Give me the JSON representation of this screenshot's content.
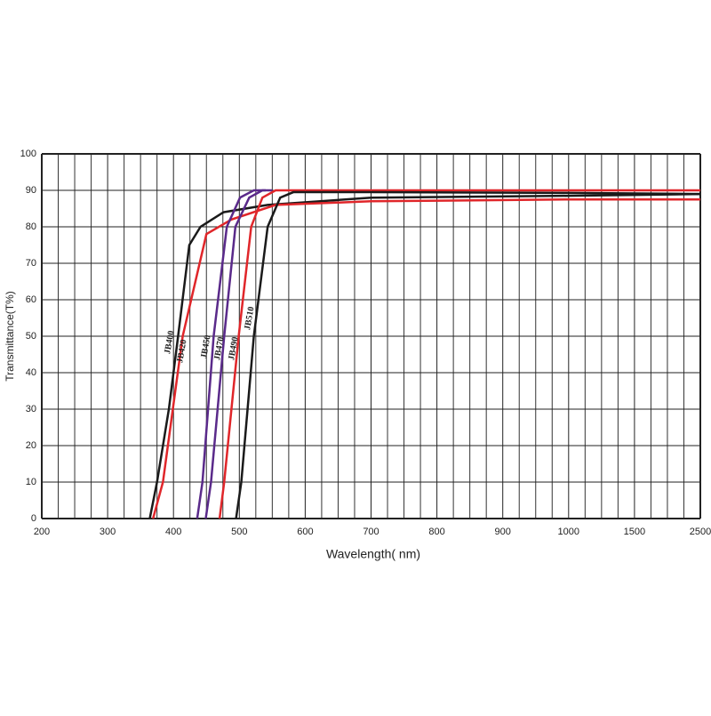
{
  "chart_data": {
    "type": "line",
    "xlabel": "Wavelength( nm)",
    "ylabel": "Transmittance(T%)",
    "xlim": [
      200,
      2500
    ],
    "xticks": [
      200,
      300,
      400,
      500,
      600,
      700,
      800,
      900,
      1000,
      1500,
      2500
    ],
    "ylim": [
      0,
      100
    ],
    "yticks": [
      0,
      10,
      20,
      30,
      40,
      50,
      60,
      70,
      80,
      90,
      100
    ],
    "grid": true,
    "series": [
      {
        "name": "JB400",
        "color": "#1a1a1a",
        "x": [
          364,
          375,
          393,
          407,
          424,
          441,
          476,
          543,
          700,
          1000,
          2500
        ],
        "values": [
          0,
          10,
          30,
          50,
          75,
          80,
          84,
          86,
          88,
          88.5,
          89
        ]
      },
      {
        "name": "JB420",
        "color": "#e0262a",
        "x": [
          369,
          384,
          414,
          450,
          488,
          555,
          700,
          1000,
          2500
        ],
        "values": [
          0,
          10,
          50,
          78,
          82,
          86,
          87,
          87.5,
          87.5
        ]
      },
      {
        "name": "JB450",
        "color": "#5a2a8a",
        "x": [
          436,
          444,
          461,
          481,
          501,
          522,
          540
        ],
        "values": [
          0,
          10,
          50,
          80,
          88,
          90,
          90
        ]
      },
      {
        "name": "JB470",
        "color": "#5a2a8a",
        "x": [
          449,
          457,
          477,
          494,
          515,
          535,
          550
        ],
        "values": [
          0,
          10,
          50,
          80,
          88,
          90,
          90
        ]
      },
      {
        "name": "JB490",
        "color": "#e0262a",
        "x": [
          470,
          477,
          499,
          518,
          535,
          555,
          700,
          1000,
          2500
        ],
        "values": [
          0,
          10,
          50,
          80,
          88,
          90,
          90,
          90,
          90
        ]
      },
      {
        "name": "JB510",
        "color": "#1a1a1a",
        "x": [
          495,
          503,
          522,
          543,
          562,
          582,
          700,
          1000,
          2500
        ],
        "values": [
          0,
          10,
          50,
          80,
          88,
          89.5,
          89.5,
          89.3,
          89
        ]
      }
    ]
  }
}
